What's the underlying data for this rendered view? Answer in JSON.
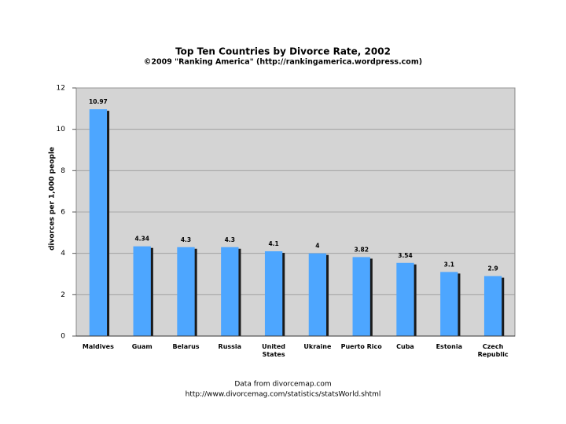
{
  "chart_data": {
    "type": "bar",
    "title": "Top Ten Countries by Divorce Rate, 2002",
    "subtitle": "©2009 \"Ranking America\" (http://rankingamerica.wordpress.com)",
    "y_label": "divorces per 1,000 people",
    "categories": [
      "Maldives",
      "Guam",
      "Belarus",
      "Russia",
      "United\nStates",
      "Ukraine",
      "Puerto Rico",
      "Cuba",
      "Estonia",
      "Czech\nRepublic"
    ],
    "values": [
      10.97,
      4.34,
      4.3,
      4.3,
      4.1,
      4,
      3.82,
      3.54,
      3.1,
      2.9
    ],
    "color": "#4da6ff",
    "ylim": [
      0,
      12
    ],
    "yticks": [
      0,
      2,
      4,
      6,
      8,
      10,
      12
    ],
    "grid": true,
    "footnotes": [
      "Data from divorcemap.com",
      "http://www.divorcemag.com/statistics/statsWorld.shtml"
    ]
  }
}
